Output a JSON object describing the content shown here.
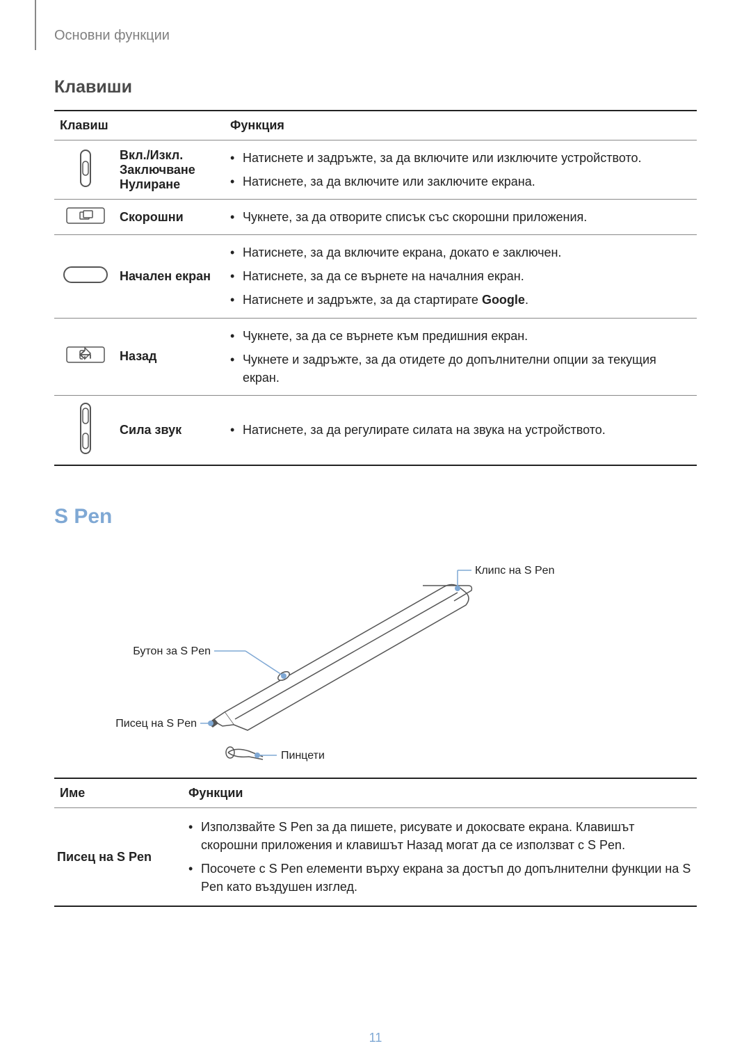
{
  "header": "Основни функции",
  "page_number": "11",
  "keys_section": {
    "title": "Клавиши",
    "col1": "Клавиш",
    "col2": "Функция",
    "rows": [
      {
        "name_line1": "Вкл./Изкл.",
        "name_line2": "Заключване",
        "name_line3": "Нулиране",
        "funcs": [
          "Натиснете и задръжте, за да включите или изключите устройството.",
          "Натиснете, за да включите или заключите екрана."
        ]
      },
      {
        "name": "Скорошни",
        "funcs": [
          "Чукнете, за да отворите списък със скорошни приложения."
        ]
      },
      {
        "name": "Начален екран",
        "funcs": [
          "Натиснете, за да включите екрана, докато е заключен.",
          "Натиснете, за да се върнете на началния екран.",
          "Натиснете и задръжте, за да стартирате <b>Google</b>."
        ]
      },
      {
        "name": "Назад",
        "funcs": [
          "Чукнете, за да се върнете към предишния екран.",
          "Чукнете и задръжте, за да отидете до допълнителни опции за текущия екран."
        ]
      },
      {
        "name": "Сила звук",
        "funcs": [
          "Натиснете, за да регулирате силата на звука на устройството."
        ]
      }
    ]
  },
  "spen_section": {
    "title": "S Pen",
    "labels": {
      "clip": "Клипс на S Pen",
      "button": "Бутон за S Pen",
      "nib": "Писец на S Pen",
      "tweezers": "Пинцети"
    },
    "table": {
      "col1": "Име",
      "col2": "Функции",
      "row_name": "Писец на S Pen",
      "row_funcs": [
        "Използвайте S Pen за да пишете, рисувате и докосвате екрана. Клавишът скорошни приложения и клавишът Назад могат да се използват с S Pen.",
        "Посочете с S Pen елементи върху екрана за достъп до допълнителни функции на S Pen като въздушен изглед."
      ]
    }
  },
  "colors": {
    "text": "#222222",
    "muted": "#808080",
    "accent": "#7fa8d4",
    "rule": "#888888"
  }
}
